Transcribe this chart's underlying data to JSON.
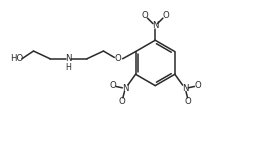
{
  "bg_color": "#ffffff",
  "line_color": "#2a2a2a",
  "line_width": 1.1,
  "font_size": 6.2,
  "fig_width": 2.8,
  "fig_height": 1.48,
  "dpi": 100,
  "xlim": [
    0,
    10
  ],
  "ylim": [
    0,
    5.3
  ]
}
